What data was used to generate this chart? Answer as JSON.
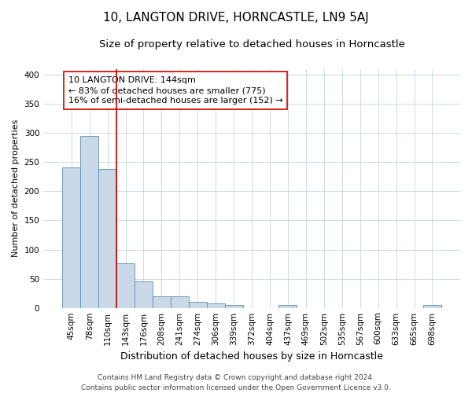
{
  "title": "10, LANGTON DRIVE, HORNCASTLE, LN9 5AJ",
  "subtitle": "Size of property relative to detached houses in Horncastle",
  "xlabel": "Distribution of detached houses by size in Horncastle",
  "ylabel": "Number of detached properties",
  "categories": [
    "45sqm",
    "78sqm",
    "110sqm",
    "143sqm",
    "176sqm",
    "208sqm",
    "241sqm",
    "274sqm",
    "306sqm",
    "339sqm",
    "372sqm",
    "404sqm",
    "437sqm",
    "469sqm",
    "502sqm",
    "535sqm",
    "567sqm",
    "600sqm",
    "633sqm",
    "665sqm",
    "698sqm"
  ],
  "values": [
    241,
    295,
    238,
    76,
    45,
    20,
    20,
    10,
    7,
    5,
    0,
    0,
    5,
    0,
    0,
    0,
    0,
    0,
    0,
    0,
    5
  ],
  "bar_color": "#c9d9e8",
  "bar_edge_color": "#5b8db8",
  "highlight_line_index": 3,
  "highlight_line_color": "#cc0000",
  "annotation_line1": "10 LANGTON DRIVE: 144sqm",
  "annotation_line2": "← 83% of detached houses are smaller (775)",
  "annotation_line3": "16% of semi-detached houses are larger (152) →",
  "annotation_box_color": "white",
  "annotation_box_edge_color": "#cc0000",
  "ylim": [
    0,
    410
  ],
  "yticks": [
    0,
    50,
    100,
    150,
    200,
    250,
    300,
    350,
    400
  ],
  "grid_color": "#b8cfe0",
  "background_color": "white",
  "footer_line1": "Contains HM Land Registry data © Crown copyright and database right 2024.",
  "footer_line2": "Contains public sector information licensed under the Open Government Licence v3.0.",
  "title_fontsize": 11,
  "subtitle_fontsize": 9.5,
  "xlabel_fontsize": 9,
  "ylabel_fontsize": 8,
  "tick_fontsize": 7.5,
  "annotation_fontsize": 8,
  "footer_fontsize": 6.5
}
